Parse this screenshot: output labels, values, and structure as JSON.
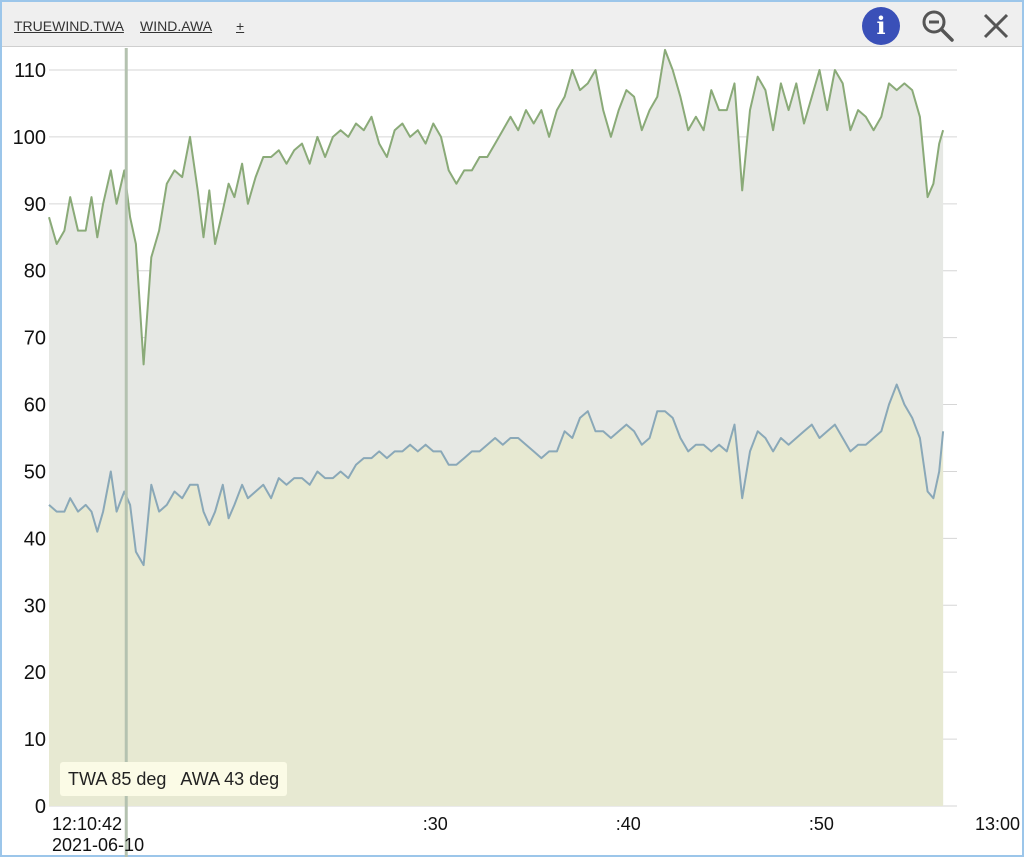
{
  "toolbar": {
    "series_tabs": [
      "TRUEWIND.TWA",
      "WIND.AWA"
    ],
    "add_label": "+",
    "info_icon": "info-icon",
    "zoom_icon": "zoom-out-icon",
    "close_icon": "close-icon",
    "info_color": "#3a50b8"
  },
  "readout": {
    "twa": "TWA 85 deg",
    "awa": "AWA 43 deg"
  },
  "chart_data": {
    "type": "area",
    "ylim": [
      0,
      110
    ],
    "yticks": [
      0,
      10,
      20,
      30,
      40,
      50,
      60,
      70,
      80,
      90,
      100,
      110
    ],
    "xlim": [
      "12:10:42",
      "13:00"
    ],
    "start_label": "12:10:42",
    "start_date": "2021-06-10",
    "xtick_labels": [
      ":30",
      ":40",
      ":50",
      "13:00"
    ],
    "xtick_minutes": [
      20,
      30,
      40,
      50
    ],
    "cursor_minute": 4,
    "grid": true,
    "series": [
      {
        "key": "TRUEWIND.TWA",
        "color": "#8aaa78",
        "fill": "#e6e8e4",
        "points": [
          [
            0.0,
            88
          ],
          [
            0.4,
            84
          ],
          [
            0.8,
            86
          ],
          [
            1.1,
            91
          ],
          [
            1.5,
            86
          ],
          [
            1.9,
            86
          ],
          [
            2.2,
            91
          ],
          [
            2.5,
            85
          ],
          [
            2.8,
            90
          ],
          [
            3.2,
            95
          ],
          [
            3.5,
            90
          ],
          [
            3.9,
            95
          ],
          [
            4.2,
            88
          ],
          [
            4.5,
            84
          ],
          [
            4.9,
            66
          ],
          [
            5.3,
            82
          ],
          [
            5.7,
            86
          ],
          [
            6.1,
            93
          ],
          [
            6.5,
            95
          ],
          [
            6.9,
            94
          ],
          [
            7.3,
            100
          ],
          [
            7.7,
            92
          ],
          [
            8.0,
            85
          ],
          [
            8.3,
            92
          ],
          [
            8.6,
            84
          ],
          [
            9.0,
            89
          ],
          [
            9.3,
            93
          ],
          [
            9.6,
            91
          ],
          [
            10.0,
            96
          ],
          [
            10.3,
            90
          ],
          [
            10.7,
            94
          ],
          [
            11.1,
            97
          ],
          [
            11.5,
            97
          ],
          [
            11.9,
            98
          ],
          [
            12.3,
            96
          ],
          [
            12.7,
            98
          ],
          [
            13.1,
            99
          ],
          [
            13.5,
            96
          ],
          [
            13.9,
            100
          ],
          [
            14.3,
            97
          ],
          [
            14.7,
            100
          ],
          [
            15.1,
            101
          ],
          [
            15.5,
            100
          ],
          [
            15.9,
            102
          ],
          [
            16.3,
            101
          ],
          [
            16.7,
            103
          ],
          [
            17.1,
            99
          ],
          [
            17.5,
            97
          ],
          [
            17.9,
            101
          ],
          [
            18.3,
            102
          ],
          [
            18.7,
            100
          ],
          [
            19.1,
            101
          ],
          [
            19.5,
            99
          ],
          [
            19.9,
            102
          ],
          [
            20.3,
            100
          ],
          [
            20.7,
            95
          ],
          [
            21.1,
            93
          ],
          [
            21.5,
            95
          ],
          [
            21.9,
            95
          ],
          [
            22.3,
            97
          ],
          [
            22.7,
            97
          ],
          [
            23.1,
            99
          ],
          [
            23.5,
            101
          ],
          [
            23.9,
            103
          ],
          [
            24.3,
            101
          ],
          [
            24.7,
            104
          ],
          [
            25.1,
            102
          ],
          [
            25.5,
            104
          ],
          [
            25.9,
            100
          ],
          [
            26.3,
            104
          ],
          [
            26.7,
            106
          ],
          [
            27.1,
            110
          ],
          [
            27.5,
            107
          ],
          [
            27.9,
            108
          ],
          [
            28.3,
            110
          ],
          [
            28.7,
            104
          ],
          [
            29.1,
            100
          ],
          [
            29.5,
            104
          ],
          [
            29.9,
            107
          ],
          [
            30.3,
            106
          ],
          [
            30.7,
            101
          ],
          [
            31.1,
            104
          ],
          [
            31.5,
            106
          ],
          [
            31.9,
            113
          ],
          [
            32.3,
            110
          ],
          [
            32.7,
            106
          ],
          [
            33.1,
            101
          ],
          [
            33.5,
            103
          ],
          [
            33.9,
            101
          ],
          [
            34.3,
            107
          ],
          [
            34.7,
            104
          ],
          [
            35.1,
            104
          ],
          [
            35.5,
            108
          ],
          [
            35.9,
            92
          ],
          [
            36.3,
            104
          ],
          [
            36.7,
            109
          ],
          [
            37.1,
            107
          ],
          [
            37.5,
            101
          ],
          [
            37.9,
            108
          ],
          [
            38.3,
            104
          ],
          [
            38.7,
            108
          ],
          [
            39.1,
            102
          ],
          [
            39.5,
            106
          ],
          [
            39.9,
            110
          ],
          [
            40.3,
            104
          ],
          [
            40.7,
            110
          ],
          [
            41.1,
            108
          ],
          [
            41.5,
            101
          ],
          [
            41.9,
            104
          ],
          [
            42.3,
            103
          ],
          [
            42.7,
            101
          ],
          [
            43.1,
            103
          ],
          [
            43.5,
            108
          ],
          [
            43.9,
            107
          ],
          [
            44.3,
            108
          ],
          [
            44.7,
            107
          ],
          [
            45.1,
            103
          ],
          [
            45.5,
            91
          ],
          [
            45.8,
            93
          ],
          [
            46.1,
            99
          ],
          [
            46.3,
            101
          ]
        ]
      },
      {
        "key": "WIND.AWA",
        "color": "#8aa8b8",
        "fill": "#e7e9d2",
        "points": [
          [
            0.0,
            45
          ],
          [
            0.4,
            44
          ],
          [
            0.8,
            44
          ],
          [
            1.1,
            46
          ],
          [
            1.5,
            44
          ],
          [
            1.9,
            45
          ],
          [
            2.2,
            44
          ],
          [
            2.5,
            41
          ],
          [
            2.8,
            44
          ],
          [
            3.2,
            50
          ],
          [
            3.5,
            44
          ],
          [
            3.9,
            47
          ],
          [
            4.2,
            45
          ],
          [
            4.5,
            38
          ],
          [
            4.9,
            36
          ],
          [
            5.3,
            48
          ],
          [
            5.7,
            44
          ],
          [
            6.1,
            45
          ],
          [
            6.5,
            47
          ],
          [
            6.9,
            46
          ],
          [
            7.3,
            48
          ],
          [
            7.7,
            48
          ],
          [
            8.0,
            44
          ],
          [
            8.3,
            42
          ],
          [
            8.6,
            44
          ],
          [
            9.0,
            48
          ],
          [
            9.3,
            43
          ],
          [
            9.6,
            45
          ],
          [
            10.0,
            48
          ],
          [
            10.3,
            46
          ],
          [
            10.7,
            47
          ],
          [
            11.1,
            48
          ],
          [
            11.5,
            46
          ],
          [
            11.9,
            49
          ],
          [
            12.3,
            48
          ],
          [
            12.7,
            49
          ],
          [
            13.1,
            49
          ],
          [
            13.5,
            48
          ],
          [
            13.9,
            50
          ],
          [
            14.3,
            49
          ],
          [
            14.7,
            49
          ],
          [
            15.1,
            50
          ],
          [
            15.5,
            49
          ],
          [
            15.9,
            51
          ],
          [
            16.3,
            52
          ],
          [
            16.7,
            52
          ],
          [
            17.1,
            53
          ],
          [
            17.5,
            52
          ],
          [
            17.9,
            53
          ],
          [
            18.3,
            53
          ],
          [
            18.7,
            54
          ],
          [
            19.1,
            53
          ],
          [
            19.5,
            54
          ],
          [
            19.9,
            53
          ],
          [
            20.3,
            53
          ],
          [
            20.7,
            51
          ],
          [
            21.1,
            51
          ],
          [
            21.5,
            52
          ],
          [
            21.9,
            53
          ],
          [
            22.3,
            53
          ],
          [
            22.7,
            54
          ],
          [
            23.1,
            55
          ],
          [
            23.5,
            54
          ],
          [
            23.9,
            55
          ],
          [
            24.3,
            55
          ],
          [
            24.7,
            54
          ],
          [
            25.1,
            53
          ],
          [
            25.5,
            52
          ],
          [
            25.9,
            53
          ],
          [
            26.3,
            53
          ],
          [
            26.7,
            56
          ],
          [
            27.1,
            55
          ],
          [
            27.5,
            58
          ],
          [
            27.9,
            59
          ],
          [
            28.3,
            56
          ],
          [
            28.7,
            56
          ],
          [
            29.1,
            55
          ],
          [
            29.5,
            56
          ],
          [
            29.9,
            57
          ],
          [
            30.3,
            56
          ],
          [
            30.7,
            54
          ],
          [
            31.1,
            55
          ],
          [
            31.5,
            59
          ],
          [
            31.9,
            59
          ],
          [
            32.3,
            58
          ],
          [
            32.7,
            55
          ],
          [
            33.1,
            53
          ],
          [
            33.5,
            54
          ],
          [
            33.9,
            54
          ],
          [
            34.3,
            53
          ],
          [
            34.7,
            54
          ],
          [
            35.1,
            53
          ],
          [
            35.5,
            57
          ],
          [
            35.9,
            46
          ],
          [
            36.3,
            53
          ],
          [
            36.7,
            56
          ],
          [
            37.1,
            55
          ],
          [
            37.5,
            53
          ],
          [
            37.9,
            55
          ],
          [
            38.3,
            54
          ],
          [
            38.7,
            55
          ],
          [
            39.1,
            56
          ],
          [
            39.5,
            57
          ],
          [
            39.9,
            55
          ],
          [
            40.3,
            56
          ],
          [
            40.7,
            57
          ],
          [
            41.1,
            55
          ],
          [
            41.5,
            53
          ],
          [
            41.9,
            54
          ],
          [
            42.3,
            54
          ],
          [
            42.7,
            55
          ],
          [
            43.1,
            56
          ],
          [
            43.5,
            60
          ],
          [
            43.9,
            63
          ],
          [
            44.3,
            60
          ],
          [
            44.7,
            58
          ],
          [
            45.1,
            55
          ],
          [
            45.5,
            47
          ],
          [
            45.8,
            46
          ],
          [
            46.1,
            50
          ],
          [
            46.3,
            56
          ]
        ]
      }
    ]
  }
}
